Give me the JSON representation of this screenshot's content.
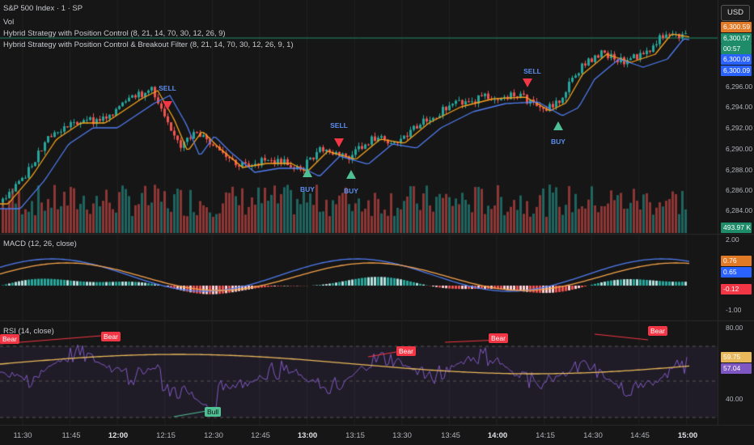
{
  "header": {
    "title": "S&P 500 Index · 1 · SP",
    "vol_label": "Vol",
    "indicator1": "Hybrid Strategy with Position Control (8, 21, 14, 70, 30, 12, 26, 9)",
    "indicator2": "Hybrid Strategy with Position Control & Breakout Filter (8, 21, 14, 70, 30, 12, 26, 9, 1)"
  },
  "currency_button": "USD",
  "price_axis": {
    "ticks": [
      "6,296.00",
      "6,294.00",
      "6,292.00",
      "6,290.00",
      "6,288.00",
      "6,286.00",
      "6,284.00"
    ],
    "tags": [
      {
        "text": "6,300.59",
        "color": "#e07a26"
      },
      {
        "text": "6,300.57",
        "color": "#1e8c69"
      },
      {
        "text": "00:57",
        "color": "#1e8c69"
      },
      {
        "text": "6,300.09",
        "color": "#2962ff"
      },
      {
        "text": "6,300.09",
        "color": "#2962ff"
      }
    ],
    "volume_tag": {
      "text": "493.97 K",
      "color": "#1e8c69"
    }
  },
  "macd": {
    "label": "MACD (12, 26, close)",
    "ticks": [
      "2.00",
      "-1.00"
    ],
    "tags": [
      {
        "text": "0.76",
        "color": "#e07a26"
      },
      {
        "text": "0.65",
        "color": "#2962ff"
      },
      {
        "text": "-0.12",
        "color": "#f23645"
      }
    ]
  },
  "rsi": {
    "label": "RSI (14, close)",
    "ticks": [
      "80.00",
      "40.00"
    ],
    "tags": [
      {
        "text": "59.75",
        "color": "#e9b95b"
      },
      {
        "text": "57.04",
        "color": "#7e57c2"
      }
    ],
    "divergences": [
      {
        "text": "Bear",
        "kind": "bear"
      },
      {
        "text": "Bear",
        "kind": "bear"
      },
      {
        "text": "Bear",
        "kind": "bear"
      },
      {
        "text": "Bear",
        "kind": "bear"
      },
      {
        "text": "Bear",
        "kind": "bear"
      },
      {
        "text": "Bull",
        "kind": "bull"
      }
    ]
  },
  "signals": [
    {
      "text": "SELL",
      "kind": "sell"
    },
    {
      "text": "SELL",
      "kind": "sell"
    },
    {
      "text": "SELL",
      "kind": "sell"
    },
    {
      "text": "BUY",
      "kind": "buy"
    },
    {
      "text": "BUY",
      "kind": "buy"
    },
    {
      "text": "BUY",
      "kind": "buy"
    }
  ],
  "time_axis": {
    "ticks": [
      {
        "text": "11:30",
        "bold": false
      },
      {
        "text": "11:45",
        "bold": false
      },
      {
        "text": "12:00",
        "bold": true
      },
      {
        "text": "12:15",
        "bold": false
      },
      {
        "text": "12:30",
        "bold": false
      },
      {
        "text": "12:45",
        "bold": false
      },
      {
        "text": "13:00",
        "bold": true
      },
      {
        "text": "13:15",
        "bold": false
      },
      {
        "text": "13:30",
        "bold": false
      },
      {
        "text": "13:45",
        "bold": false
      },
      {
        "text": "14:00",
        "bold": true
      },
      {
        "text": "14:15",
        "bold": false
      },
      {
        "text": "14:30",
        "bold": false
      },
      {
        "text": "14:45",
        "bold": false
      },
      {
        "text": "15:00",
        "bold": true
      }
    ]
  },
  "colors": {
    "up": "#26a69a",
    "down": "#ef5350",
    "ema_fast": "#f7a21b",
    "ema_slow": "#4f7cf0",
    "macd_line": "#4f7cf0",
    "signal_line": "#f5a24a",
    "rsi_line": "#7e57c2",
    "rsi_ma": "#e9b95b"
  }
}
